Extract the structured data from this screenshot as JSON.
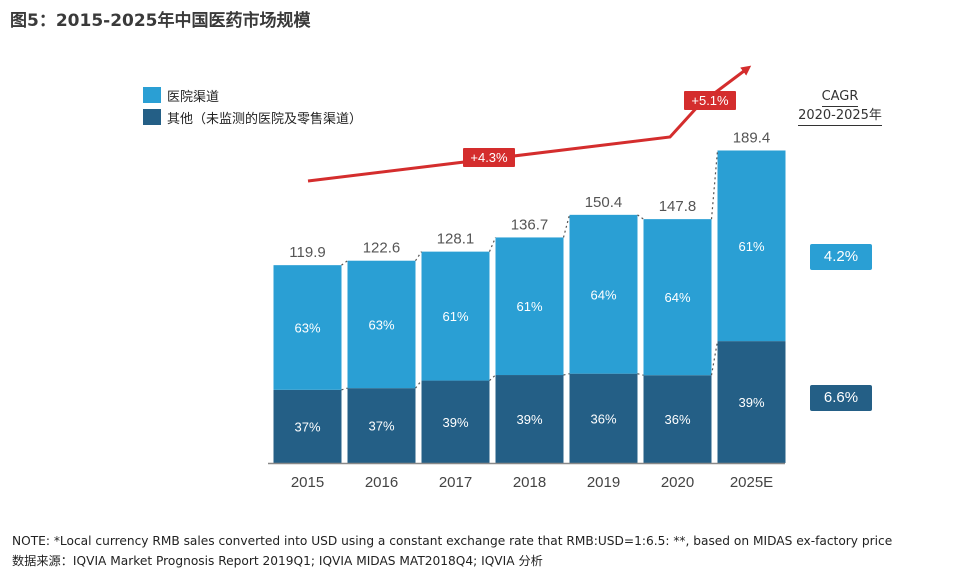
{
  "title": "图5：2015-2025年中国医药市场规模",
  "colors": {
    "hospital": "#2a9fd4",
    "other": "#245f86",
    "arrow": "#d42d2d",
    "axis": "#888888"
  },
  "chart_data": {
    "type": "bar",
    "stacked": true,
    "categories": [
      "2015",
      "2016",
      "2017",
      "2018",
      "2019",
      "2020",
      "2025E"
    ],
    "totals": [
      119.9,
      122.6,
      128.1,
      136.7,
      150.4,
      147.8,
      189.4
    ],
    "series": [
      {
        "name": "其他（未监测的医院及零售渠道）",
        "percent": [
          37,
          37,
          39,
          39,
          36,
          36,
          39
        ]
      },
      {
        "name": "医院渠道",
        "percent": [
          63,
          63,
          61,
          61,
          64,
          64,
          61
        ]
      }
    ],
    "ylim": [
      0,
      200
    ],
    "growth_labels": [
      "+4.3%",
      "+5.1%"
    ],
    "cagr": {
      "header_line1": "CAGR",
      "header_line2": "2020-2025年",
      "hospital": "4.2%",
      "other": "6.6%"
    }
  },
  "notes": [
    "NOTE: *Local currency RMB sales converted into USD using a constant exchange rate that RMB:USD=1:6.5: **, based on MIDAS ex-factory price",
    "数据来源：IQVIA Market Prognosis Report 2019Q1; IQVIA MIDAS MAT2018Q4; IQVIA 分析"
  ]
}
